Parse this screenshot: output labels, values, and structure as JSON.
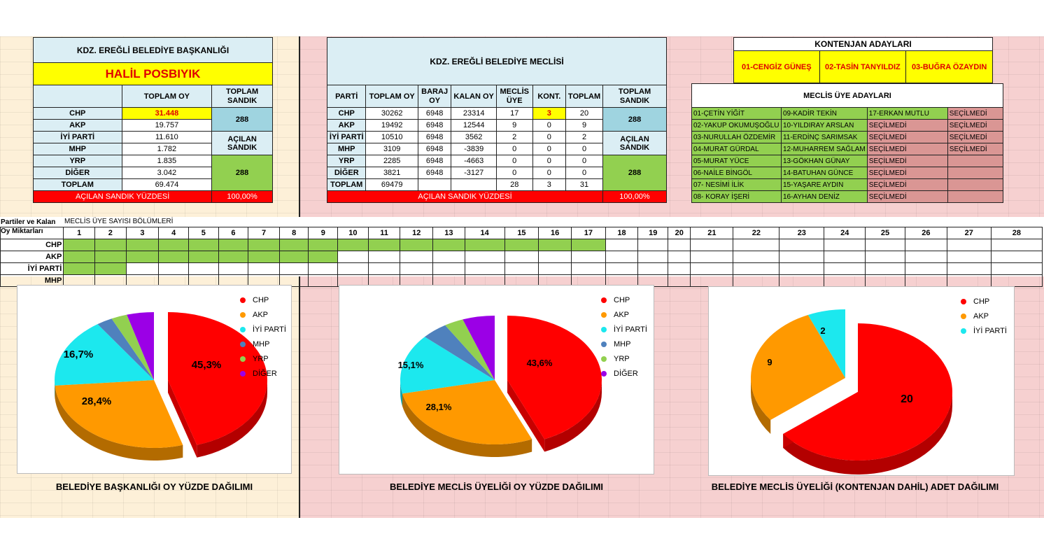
{
  "mayor": {
    "title": "KDZ. EREĞLİ BELEDİYE BAŞKANLIĞI",
    "name": "HALİL POSBIYIK",
    "col_total_votes": "TOPLAM OY",
    "col_total_ballot": "TOPLAM SANDIK",
    "total_ballot_value": "288",
    "opened_ballot_label": "AÇILAN SANDIK",
    "opened_ballot_value": "288",
    "rows": [
      {
        "party": "CHP",
        "votes": "31.448"
      },
      {
        "party": "AKP",
        "votes": "19.757"
      },
      {
        "party": "İYİ PARTİ",
        "votes": "11.610"
      },
      {
        "party": "MHP",
        "votes": "1.782"
      },
      {
        "party": "YRP",
        "votes": "1.835"
      },
      {
        "party": "DİĞER",
        "votes": "3.042"
      },
      {
        "party": "TOPLAM",
        "votes": "69.474"
      }
    ],
    "opened_pct_label": "AÇILAN SANDIK YÜZDESİ",
    "opened_pct_value": "100,00%"
  },
  "council": {
    "title": "KDZ. EREĞLİ BELEDİYE MECLİSİ",
    "headers": [
      "PARTİ",
      "TOPLAM OY",
      "BARAJ OY",
      "KALAN OY",
      "MECLİS ÜYE",
      "KONT.",
      "TOPLAM"
    ],
    "col_total_ballot": "TOPLAM SANDIK",
    "total_ballot_value": "288",
    "opened_ballot_label": "AÇILAN SANDIK",
    "opened_ballot_value": "288",
    "rows": [
      {
        "party": "CHP",
        "votes": "30262",
        "threshold": "6948",
        "remaining": "23314",
        "members": "17",
        "quota": "3",
        "total": "20"
      },
      {
        "party": "AKP",
        "votes": "19492",
        "threshold": "6948",
        "remaining": "12544",
        "members": "9",
        "quota": "0",
        "total": "9"
      },
      {
        "party": "İYİ PARTİ",
        "votes": "10510",
        "threshold": "6948",
        "remaining": "3562",
        "members": "2",
        "quota": "0",
        "total": "2"
      },
      {
        "party": "MHP",
        "votes": "3109",
        "threshold": "6948",
        "remaining": "-3839",
        "members": "0",
        "quota": "0",
        "total": "0"
      },
      {
        "party": "YRP",
        "votes": "2285",
        "threshold": "6948",
        "remaining": "-4663",
        "members": "0",
        "quota": "0",
        "total": "0"
      },
      {
        "party": "DİĞER",
        "votes": "3821",
        "threshold": "6948",
        "remaining": "-3127",
        "members": "0",
        "quota": "0",
        "total": "0"
      },
      {
        "party": "TOPLAM",
        "votes": "69479",
        "threshold": "",
        "remaining": "",
        "members": "28",
        "quota": "3",
        "total": "31"
      }
    ],
    "opened_pct_label": "AÇILAN SANDIK YÜZDESİ",
    "opened_pct_value": "100,00%"
  },
  "quota_candidates": {
    "title": "KONTENJAN ADAYLARI",
    "names": [
      "01-CENGİZ GÜNEŞ",
      "02-TASİN TANYILDIZ",
      "03-BUĞRA ÖZAYDIN"
    ]
  },
  "council_candidates": {
    "title": "MECLİS ÜYE ADAYLARI",
    "rows": [
      [
        "01-ÇETİN YİĞİT",
        "09-KADİR TEKİN",
        "17-ERKAN MUTLU",
        "SEÇİLMEDİ"
      ],
      [
        "02-YAKUP OKUMUŞOĞLU",
        "10-YILDIRAY ARSLAN",
        "SEÇİLMEDİ",
        "SEÇİLMEDİ"
      ],
      [
        "03-NURULLAH ÖZDEMİR",
        "11-ERDİNÇ SARIMSAK",
        "SEÇİLMEDİ",
        "SEÇİLMEDİ"
      ],
      [
        "04-MURAT GÜRDAL",
        "12-MUHARREM SAĞLAM",
        "SEÇİLMEDİ",
        "SEÇİLMEDİ"
      ],
      [
        "05-MURAT YÜCE",
        "13-GÖKHAN GÜNAY",
        "SEÇİLMEDİ",
        ""
      ],
      [
        "06-NAİLE BİNGÖL",
        "14-BATUHAN GÜNCE",
        "SEÇİLMEDİ",
        ""
      ],
      [
        "07- NESİMİ İLİK",
        "15-YAŞARE AYDIN",
        "SEÇİLMEDİ",
        ""
      ],
      [
        "08- KORAY İŞERİ",
        "16-AYHAN DENİZ",
        "SEÇİLMEDİ",
        ""
      ]
    ]
  },
  "seats": {
    "left_header_1": "Partiler ve Kalan",
    "left_header_2": "Oy Miktarları",
    "title": "MECLİS ÜYE SAYISI BÖLÜMLERİ",
    "columns": [
      "1",
      "2",
      "3",
      "4",
      "5",
      "6",
      "7",
      "8",
      "9",
      "10",
      "11",
      "12",
      "13",
      "14",
      "15",
      "16",
      "17",
      "18",
      "19",
      "20",
      "21",
      "22",
      "23",
      "24",
      "25",
      "26",
      "27",
      "28"
    ],
    "rows": [
      {
        "party": "CHP",
        "filled": 17
      },
      {
        "party": "AKP",
        "filled": 9
      },
      {
        "party": "İYİ PARTİ",
        "filled": 2
      },
      {
        "party": "MHP",
        "filled": 0
      }
    ]
  },
  "colors": {
    "CHP": "#ff0000",
    "AKP": "#ff9900",
    "İYİ PARTİ": "#1ce8ee",
    "MHP": "#4f81bd",
    "YRP": "#92d050",
    "DİĞER": "#9b00e6"
  },
  "captions": {
    "mayor": "BELEDİYE BAŞKANLIĞI OY YÜZDE DAĞILIMI",
    "council": "BELEDİYE MECLİS ÜYELİĞİ OY YÜZDE DAĞILIMI",
    "seats": "BELEDİYE MECLİS ÜYELİĞİ (KONTENJAN DAHİL) ADET DAĞILIMI"
  },
  "chart_data": [
    {
      "type": "pie",
      "legend": [
        "CHP",
        "AKP",
        "İYİ PARTİ",
        "MHP",
        "YRP",
        "DİĞER"
      ],
      "values": [
        45.3,
        28.4,
        16.7,
        2.6,
        2.6,
        4.4
      ],
      "labels": [
        "45,3%",
        "28,4%",
        "16,7%",
        "",
        "",
        ""
      ]
    },
    {
      "type": "pie",
      "legend": [
        "CHP",
        "AKP",
        "İYİ PARTİ",
        "MHP",
        "YRP",
        "DİĞER"
      ],
      "values": [
        43.6,
        28.1,
        15.1,
        4.5,
        3.3,
        5.5
      ],
      "labels": [
        "43,6%",
        "28,1%",
        "15,1%",
        "",
        "",
        ""
      ]
    },
    {
      "type": "pie",
      "legend": [
        "CHP",
        "AKP",
        "İYİ PARTİ"
      ],
      "values": [
        20,
        9,
        2
      ],
      "labels": [
        "20",
        "9",
        "2"
      ]
    }
  ]
}
